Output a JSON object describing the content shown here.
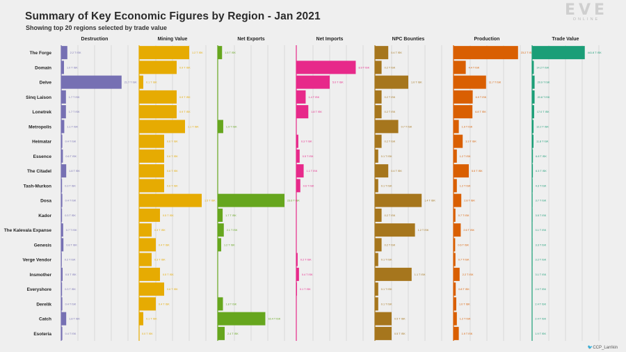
{
  "header": {
    "title": "Summary of Key Economic Figures by Region - Jan 2021",
    "subtitle": "Showing top 20 regions selected by trade value"
  },
  "logo": {
    "main": "EVE",
    "sub": "ONLINE"
  },
  "credit": {
    "bird": "🐦",
    "handle": "CCP_Larrikin"
  },
  "chart_data": {
    "type": "bar",
    "orientation": "horizontal",
    "layout": "small-multiples",
    "grid": true,
    "categories": [
      "The Forge",
      "Domain",
      "Delve",
      "Sinq Laison",
      "Lonetrek",
      "Metropolis",
      "Heimatar",
      "Essence",
      "The Citadel",
      "Tash-Murkon",
      "Dosa",
      "Kador",
      "The Kalevala Expanse",
      "Genesis",
      "Verge Vendor",
      "Insmother",
      "Everyshore",
      "Derelik",
      "Catch",
      "Esoteria"
    ],
    "series": [
      {
        "name": "Destruction",
        "color": "#7670b3",
        "xlim": [
          0,
          24
        ],
        "values": [
          2.2,
          1.0,
          21.7,
          1.7,
          1.7,
          1.1,
          0.4,
          0.6,
          1.8,
          0.3,
          0.4,
          0.3,
          0.7,
          0.8,
          0.2,
          0.5,
          0.3,
          0.4,
          1.8,
          0.4
        ],
        "labels": [
          "2.2 T ISK",
          "1.0 T ISK",
          "21.7 T ISK",
          "1.7 T ISK",
          "1.7 T ISK",
          "1.1 T ISK",
          "0.4 T ISK",
          "0.6 T ISK",
          "1.8 T ISK",
          "0.3 T ISK",
          "0.4 T ISK",
          "0.3 T ISK",
          "0.7 T ISK",
          "0.8 T ISK",
          "0.2 T ISK",
          "0.5 T ISK",
          "0.3 T ISK",
          "0.4 T ISK",
          "1.8 T ISK",
          "0.4 T ISK"
        ]
      },
      {
        "name": "Mining Value",
        "color": "#e6ab02",
        "xlim": [
          0,
          1.6
        ],
        "values": [
          1.2,
          0.9,
          0.1,
          0.9,
          0.9,
          1.1,
          0.6,
          0.6,
          0.6,
          0.6,
          1.5,
          0.5,
          0.3,
          0.4,
          0.3,
          0.5,
          0.6,
          0.4,
          0.1,
          0.0
        ],
        "labels": [
          "1.2 T ISK",
          "0.9 T ISK",
          "0.1 T ISK",
          "0.9 T ISK",
          "0.9 T ISK",
          "1.1 T ISK",
          "0.6 T ISK",
          "0.6 T ISK",
          "0.6 T ISK",
          "0.6 T ISK",
          "1.5 T ISK",
          "0.5 T ISK",
          "0.3 T ISK",
          "0.4 T ISK",
          "0.3 T ISK",
          "0.5 T ISK",
          "0.6 T ISK",
          "0.4 T ISK",
          "0.1 T ISK",
          "0.0 T ISK"
        ]
      },
      {
        "name": "Net Exports",
        "color": "#66a61e",
        "xlim": [
          0,
          23
        ],
        "values": [
          1.5,
          0,
          0,
          0,
          0,
          1.9,
          0,
          0,
          0,
          0,
          23.6,
          1.7,
          2.1,
          1.2,
          0,
          0,
          0,
          1.8,
          16.4,
          2.4
        ],
        "labels": [
          "1.5 T ISK",
          "",
          "",
          "",
          "",
          "1.9 T ISK",
          "",
          "",
          "",
          "",
          "23.6 T ISK",
          "1.7 T ISK",
          "2.1 T ISK",
          "1.2 T ISK",
          "",
          "",
          "",
          "1.8 T ISK",
          "16.4 T ISK",
          "2.4 T ISK"
        ]
      },
      {
        "name": "Net Imports",
        "color": "#e7298a",
        "xlim": [
          0,
          10
        ],
        "values": [
          0,
          8.9,
          5.0,
          1.4,
          1.8,
          0,
          0.3,
          0.5,
          1.1,
          0.6,
          0,
          0,
          0,
          0,
          0.2,
          0.4,
          0.1,
          0,
          0,
          0
        ],
        "labels": [
          "",
          "8.9 T ISK",
          "5.0 T ISK",
          "1.4 T ISK",
          "1.8 T ISK",
          "",
          "0.3 T ISK",
          "0.5 T ISK",
          "1.1 T ISK",
          "0.6 T ISK",
          "",
          "",
          "",
          "",
          "0.2 T ISK",
          "0.4 T ISK",
          "0.1 T ISK",
          "",
          "",
          ""
        ]
      },
      {
        "name": "NPC Bounties",
        "color": "#a6761d",
        "xlim": [
          0,
          2.0
        ],
        "values": [
          0.4,
          0.2,
          1.0,
          0.2,
          0.2,
          0.7,
          0.2,
          0.1,
          0.4,
          0.1,
          1.4,
          0.2,
          1.2,
          0.2,
          0.1,
          1.1,
          0.1,
          0.1,
          0.5,
          0.5
        ],
        "labels": [
          "0.4 T ISK",
          "0.2 T ISK",
          "1.0 T ISK",
          "0.2 T ISK",
          "0.2 T ISK",
          "0.7 T ISK",
          "0.2 T ISK",
          "0.1 T ISK",
          "0.4 T ISK",
          "0.1 T ISK",
          "1.4 T ISK",
          "0.2 T ISK",
          "1.2 T ISK",
          "0.2 T ISK",
          "0.1 T ISK",
          "1.1 T ISK",
          "0.1 T ISK",
          "0.1 T ISK",
          "0.5 T ISK",
          "0.5 T ISK"
        ]
      },
      {
        "name": "Production",
        "color": "#d95f02",
        "xlim": [
          0,
          24
        ],
        "values": [
          23.2,
          4.4,
          11.7,
          6.9,
          6.8,
          1.9,
          3.3,
          1.2,
          5.5,
          1.2,
          2.8,
          0.7,
          2.6,
          0.6,
          0.7,
          2.2,
          0.8,
          1.0,
          1.2,
          1.9
        ],
        "labels": [
          "23.2 T ISK",
          "4.4 T ISK",
          "11.7 T ISK",
          "6.9 T ISK",
          "6.8 T ISK",
          "1.9 T ISK",
          "3.3 T ISK",
          "1.2 T ISK",
          "5.5 T ISK",
          "1.2 T ISK",
          "2.8 T ISK",
          "0.7 T ISK",
          "2.6 T ISK",
          "0.6 T ISK",
          "0.7 T ISK",
          "2.2 T ISK",
          "0.8 T ISK",
          "1.0 T ISK",
          "1.2 T ISK",
          "1.9 T ISK"
        ]
      },
      {
        "name": "Trade Value",
        "color": "#1b9e77",
        "xlim": [
          0,
          560
        ],
        "values": [
          441.8,
          14.2,
          20.9,
          20.8,
          17.0,
          12.2,
          11.8,
          6.8,
          6.3,
          4.3,
          3.7,
          3.5,
          3.1,
          3.3,
          3.2,
          3.1,
          2.6,
          2.4,
          2.4,
          1.9
        ],
        "labels": [
          "441.8 T ISK",
          "14.2 T ISK",
          "20.9 T ISK",
          "20.8 T ISK",
          "17.0 T ISK",
          "12.2 T ISK",
          "11.8 T ISK",
          "6.8 T ISK",
          "6.3 T ISK",
          "4.3 T ISK",
          "3.7 T ISK",
          "3.5 T ISK",
          "3.1 T ISK",
          "3.3 T ISK",
          "3.2 T ISK",
          "3.1 T ISK",
          "2.6 T ISK",
          "2.4 T ISK",
          "2.4 T ISK",
          "1.9 T ISK"
        ]
      }
    ]
  }
}
